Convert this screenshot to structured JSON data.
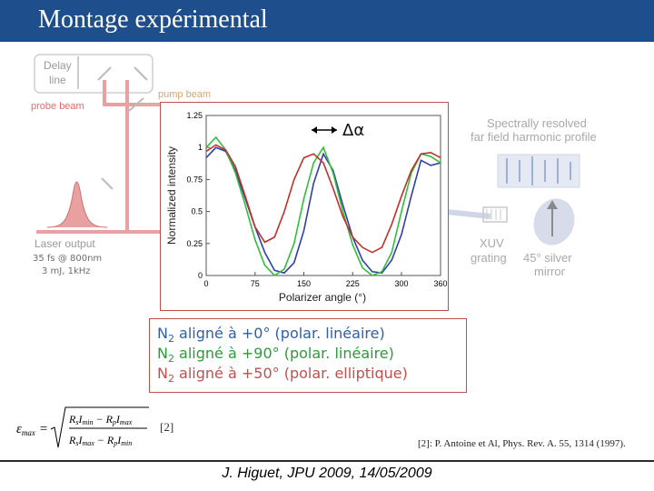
{
  "header": {
    "title": "Montage expérimental"
  },
  "setup": {
    "delay_line": [
      "Delay",
      "line"
    ],
    "probe_beam": "probe beam",
    "pump_beam": "pump beam",
    "laser_output": "Laser output",
    "laser_params": [
      "35 fs @ 800nm",
      "3 mJ, 1kHz"
    ],
    "spectral_label": [
      "Spectrally resolved",
      "far field harmonic profile"
    ],
    "xuv_grating": [
      "XUV",
      "grating"
    ],
    "silver_mirror": [
      "45° silver",
      "mirror"
    ]
  },
  "chart_data": {
    "type": "line",
    "title": "",
    "xlabel": "Polarizer angle (°)",
    "ylabel": "Normalized intensity",
    "xlim": [
      0,
      360
    ],
    "ylim": [
      0,
      1.25
    ],
    "xticks": [
      "0",
      "75",
      "150",
      "225",
      "300",
      "360"
    ],
    "yticks": [
      "0",
      "0.25",
      "0.5",
      "0.75",
      "1",
      "1.25"
    ],
    "annotation": "Δα",
    "series": [
      {
        "color": "#2e3fa8",
        "x": [
          0,
          15,
          30,
          45,
          60,
          75,
          90,
          105,
          120,
          135,
          150,
          165,
          180,
          195,
          210,
          225,
          240,
          255,
          270,
          285,
          300,
          315,
          330,
          345,
          360
        ],
        "y": [
          0.92,
          1.0,
          0.97,
          0.82,
          0.6,
          0.38,
          0.18,
          0.04,
          0.02,
          0.1,
          0.35,
          0.72,
          0.95,
          0.82,
          0.55,
          0.3,
          0.12,
          0.03,
          0.02,
          0.12,
          0.32,
          0.62,
          0.9,
          0.86,
          0.88
        ]
      },
      {
        "color": "#2fbf3a",
        "x": [
          0,
          15,
          30,
          45,
          60,
          75,
          90,
          105,
          120,
          135,
          150,
          165,
          180,
          195,
          210,
          225,
          240,
          255,
          270,
          285,
          300,
          315,
          330,
          345,
          360
        ],
        "y": [
          1.0,
          1.08,
          0.98,
          0.8,
          0.55,
          0.28,
          0.08,
          0.0,
          0.05,
          0.25,
          0.6,
          0.88,
          1.0,
          0.8,
          0.5,
          0.24,
          0.06,
          0.0,
          0.03,
          0.18,
          0.5,
          0.8,
          0.95,
          0.93,
          0.88
        ]
      },
      {
        "color": "#c0302b",
        "x": [
          0,
          15,
          30,
          45,
          60,
          75,
          90,
          105,
          120,
          135,
          150,
          165,
          180,
          195,
          210,
          225,
          240,
          255,
          270,
          285,
          300,
          315,
          330,
          345,
          360
        ],
        "y": [
          0.97,
          1.02,
          0.98,
          0.85,
          0.62,
          0.38,
          0.26,
          0.3,
          0.5,
          0.75,
          0.92,
          0.95,
          0.88,
          0.68,
          0.46,
          0.3,
          0.22,
          0.18,
          0.22,
          0.4,
          0.62,
          0.82,
          0.95,
          0.96,
          0.92
        ]
      }
    ]
  },
  "legend": {
    "lines": [
      {
        "pre": "N",
        "sub": "2",
        "post": " aligné à +0° (polar. linéaire)"
      },
      {
        "pre": "N",
        "sub": "2",
        "post": " aligné à +90° (polar. linéaire)"
      },
      {
        "pre": "N",
        "sub": "2",
        "post": " aligné à +50° (polar. elliptique)"
      }
    ]
  },
  "formula": {
    "lhs": "ε",
    "lhs_sub": "max",
    "eq": "=",
    "num_a": "R",
    "num_a_sub": "s",
    "num_b": "I",
    "num_b_sub": "min",
    "minus": " − ",
    "num_c": "R",
    "num_c_sub": "p",
    "num_d": "I",
    "num_d_sub": "max",
    "den_a_sub": "s",
    "den_b_sub": "max",
    "den_c_sub": "p",
    "den_d_sub": "min"
  },
  "ref_tag": "[2]",
  "citation": "[2]: P. Antoine et Al, Phys. Rev. A. 55, 1314 (1997).",
  "footer": "J. Higuet, JPU 2009, 14/05/2009",
  "colors": {
    "header": "#1f4e8c",
    "frame": "#c0504d",
    "blue": "#2e3fa8",
    "green": "#2fbf3a",
    "red": "#c0302b"
  }
}
